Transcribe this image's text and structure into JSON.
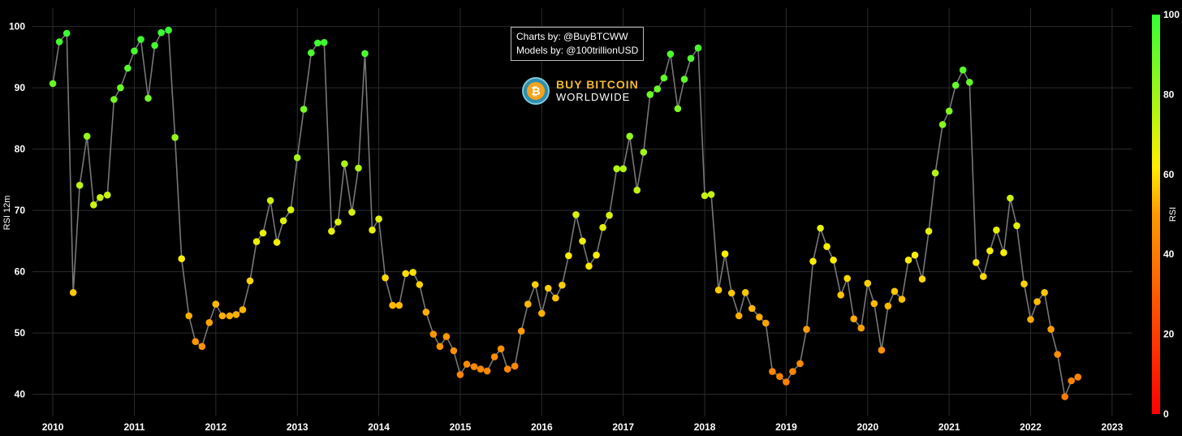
{
  "credits": {
    "line1": "Charts by: @BuyBTCWW",
    "line2": "Models by: @100trillionUSD"
  },
  "logo": {
    "line1": "BUY BITCOIN",
    "line2": "WORLDWIDE",
    "icon": "bitcoin-icon",
    "symbol": "₿"
  },
  "chart_data": {
    "type": "scatter",
    "title": "",
    "xlabel": "",
    "ylabel": "RSI 12m",
    "xlim": [
      2009.75,
      2023.25
    ],
    "ylim": [
      36.5,
      103
    ],
    "xticks": [
      2010,
      2011,
      2012,
      2013,
      2014,
      2015,
      2016,
      2017,
      2018,
      2019,
      2020,
      2021,
      2022,
      2023
    ],
    "yticks": [
      40,
      50,
      60,
      70,
      80,
      90,
      100
    ],
    "grid": true,
    "line_color": "#777777",
    "colorbar": {
      "label": "RSI",
      "range": [
        0,
        100
      ],
      "ticks": [
        0,
        20,
        40,
        60,
        80,
        100
      ],
      "colors": [
        "#ff0000",
        "#ff9900",
        "#ffee00",
        "#33ff33"
      ]
    },
    "series": [
      {
        "name": "RSI 12m",
        "points": [
          [
            2010.0,
            90.7
          ],
          [
            2010.08,
            97.5
          ],
          [
            2010.17,
            98.9
          ],
          [
            2010.25,
            56.6
          ],
          [
            2010.33,
            74.1
          ],
          [
            2010.42,
            82.1
          ],
          [
            2010.5,
            70.9
          ],
          [
            2010.58,
            72.1
          ],
          [
            2010.67,
            72.5
          ],
          [
            2010.75,
            88.1
          ],
          [
            2010.83,
            90.0
          ],
          [
            2010.92,
            93.2
          ],
          [
            2011.0,
            96.0
          ],
          [
            2011.08,
            97.9
          ],
          [
            2011.17,
            88.3
          ],
          [
            2011.25,
            96.9
          ],
          [
            2011.33,
            99.0
          ],
          [
            2011.42,
            99.4
          ],
          [
            2011.5,
            81.9
          ],
          [
            2011.58,
            62.1
          ],
          [
            2011.67,
            52.8
          ],
          [
            2011.75,
            48.6
          ],
          [
            2011.83,
            47.8
          ],
          [
            2011.92,
            51.7
          ],
          [
            2012.0,
            54.7
          ],
          [
            2012.08,
            52.8
          ],
          [
            2012.17,
            52.8
          ],
          [
            2012.25,
            53.0
          ],
          [
            2012.33,
            53.8
          ],
          [
            2012.42,
            58.5
          ],
          [
            2012.5,
            64.9
          ],
          [
            2012.58,
            66.3
          ],
          [
            2012.67,
            71.6
          ],
          [
            2012.75,
            64.8
          ],
          [
            2012.83,
            68.3
          ],
          [
            2012.92,
            70.1
          ],
          [
            2013.0,
            78.6
          ],
          [
            2013.08,
            86.5
          ],
          [
            2013.17,
            95.7
          ],
          [
            2013.25,
            97.3
          ],
          [
            2013.33,
            97.4
          ],
          [
            2013.42,
            66.6
          ],
          [
            2013.5,
            68.1
          ],
          [
            2013.58,
            77.6
          ],
          [
            2013.67,
            69.7
          ],
          [
            2013.75,
            76.9
          ],
          [
            2013.83,
            95.6
          ],
          [
            2013.92,
            66.8
          ],
          [
            2014.0,
            68.6
          ],
          [
            2014.08,
            59.0
          ],
          [
            2014.17,
            54.5
          ],
          [
            2014.25,
            54.5
          ],
          [
            2014.33,
            59.7
          ],
          [
            2014.42,
            59.9
          ],
          [
            2014.5,
            57.9
          ],
          [
            2014.58,
            53.4
          ],
          [
            2014.67,
            49.8
          ],
          [
            2014.75,
            47.8
          ],
          [
            2014.83,
            49.4
          ],
          [
            2014.92,
            47.1
          ],
          [
            2015.0,
            43.2
          ],
          [
            2015.08,
            44.9
          ],
          [
            2015.17,
            44.5
          ],
          [
            2015.25,
            44.1
          ],
          [
            2015.33,
            43.8
          ],
          [
            2015.42,
            46.1
          ],
          [
            2015.5,
            47.4
          ],
          [
            2015.58,
            44.1
          ],
          [
            2015.67,
            44.6
          ],
          [
            2015.75,
            50.3
          ],
          [
            2015.83,
            54.7
          ],
          [
            2015.92,
            57.9
          ],
          [
            2016.0,
            53.2
          ],
          [
            2016.08,
            57.3
          ],
          [
            2016.17,
            55.7
          ],
          [
            2016.25,
            57.8
          ],
          [
            2016.33,
            62.6
          ],
          [
            2016.42,
            69.3
          ],
          [
            2016.5,
            65.0
          ],
          [
            2016.58,
            60.9
          ],
          [
            2016.67,
            62.7
          ],
          [
            2016.75,
            67.2
          ],
          [
            2016.83,
            69.2
          ],
          [
            2016.92,
            76.8
          ],
          [
            2017.0,
            76.8
          ],
          [
            2017.08,
            82.1
          ],
          [
            2017.17,
            73.3
          ],
          [
            2017.25,
            79.5
          ],
          [
            2017.33,
            88.9
          ],
          [
            2017.42,
            89.8
          ],
          [
            2017.5,
            91.6
          ],
          [
            2017.58,
            95.5
          ],
          [
            2017.67,
            86.6
          ],
          [
            2017.75,
            91.4
          ],
          [
            2017.83,
            94.8
          ],
          [
            2017.92,
            96.5
          ],
          [
            2018.0,
            72.4
          ],
          [
            2018.08,
            72.6
          ],
          [
            2018.17,
            57.0
          ],
          [
            2018.25,
            62.9
          ],
          [
            2018.33,
            56.5
          ],
          [
            2018.42,
            52.8
          ],
          [
            2018.5,
            56.6
          ],
          [
            2018.58,
            54.0
          ],
          [
            2018.67,
            52.6
          ],
          [
            2018.75,
            51.6
          ],
          [
            2018.83,
            43.7
          ],
          [
            2018.92,
            42.9
          ],
          [
            2019.0,
            42.0
          ],
          [
            2019.08,
            43.7
          ],
          [
            2019.17,
            45.0
          ],
          [
            2019.25,
            50.6
          ],
          [
            2019.33,
            61.7
          ],
          [
            2019.42,
            67.1
          ],
          [
            2019.5,
            64.1
          ],
          [
            2019.58,
            61.9
          ],
          [
            2019.67,
            56.2
          ],
          [
            2019.75,
            58.9
          ],
          [
            2019.83,
            52.3
          ],
          [
            2019.92,
            50.8
          ],
          [
            2020.0,
            58.1
          ],
          [
            2020.08,
            54.8
          ],
          [
            2020.17,
            47.2
          ],
          [
            2020.25,
            54.4
          ],
          [
            2020.33,
            56.8
          ],
          [
            2020.42,
            55.5
          ],
          [
            2020.5,
            61.9
          ],
          [
            2020.58,
            62.7
          ],
          [
            2020.67,
            58.8
          ],
          [
            2020.75,
            66.6
          ],
          [
            2020.83,
            76.1
          ],
          [
            2020.92,
            84.0
          ],
          [
            2021.0,
            86.2
          ],
          [
            2021.08,
            90.4
          ],
          [
            2021.17,
            92.9
          ],
          [
            2021.25,
            90.9
          ],
          [
            2021.33,
            61.5
          ],
          [
            2021.42,
            59.2
          ],
          [
            2021.5,
            63.4
          ],
          [
            2021.58,
            66.8
          ],
          [
            2021.67,
            63.1
          ],
          [
            2021.75,
            72.0
          ],
          [
            2021.83,
            67.5
          ],
          [
            2021.92,
            58.0
          ],
          [
            2022.0,
            52.2
          ],
          [
            2022.08,
            55.1
          ],
          [
            2022.17,
            56.6
          ],
          [
            2022.25,
            50.6
          ],
          [
            2022.33,
            46.5
          ],
          [
            2022.42,
            39.6
          ],
          [
            2022.5,
            42.2
          ],
          [
            2022.58,
            42.8
          ]
        ]
      }
    ]
  }
}
